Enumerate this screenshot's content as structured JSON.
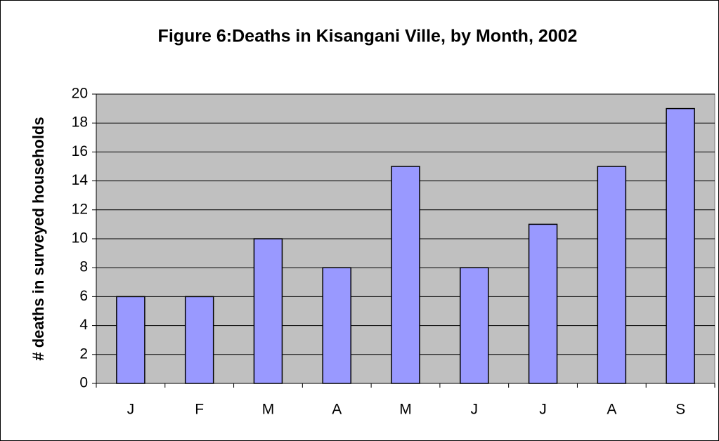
{
  "chart_data": {
    "type": "bar",
    "title": "Figure 6:Deaths in Kisangani Ville, by Month, 2002",
    "y_label": "# deaths in surveyed households",
    "categories": [
      "J",
      "F",
      "M",
      "A",
      "M",
      "J",
      "J",
      "A",
      "S"
    ],
    "values": [
      6,
      6,
      10,
      8,
      15,
      8,
      11,
      15,
      19
    ],
    "color": "#9999ff",
    "ylim": [
      0,
      20
    ],
    "yticks": [
      0,
      2,
      4,
      6,
      8,
      10,
      12,
      14,
      16,
      18,
      20
    ],
    "grid": true
  }
}
